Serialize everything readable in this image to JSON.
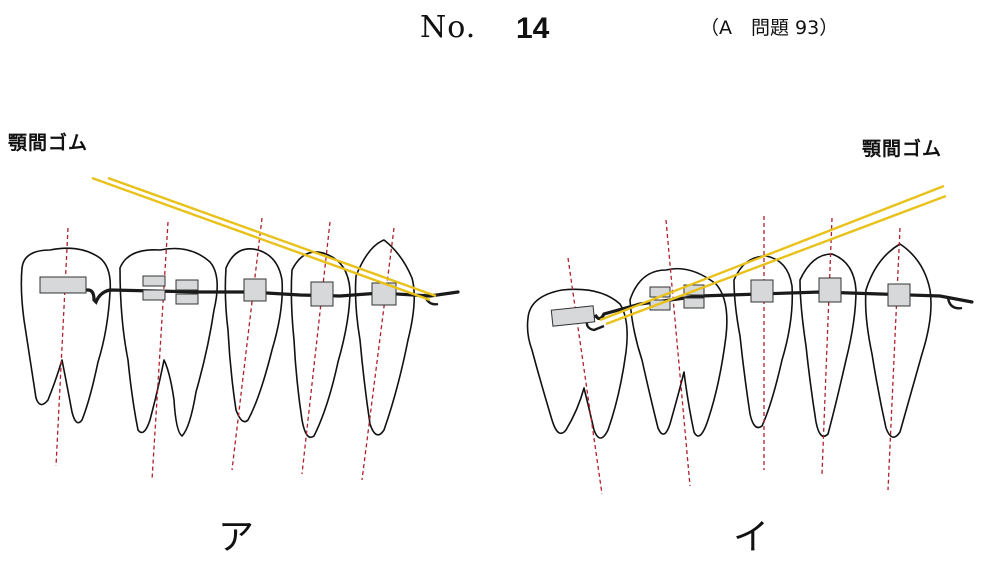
{
  "header": {
    "no": "No.",
    "number": "14",
    "reference": "（A　問題 93）"
  },
  "panels": [
    {
      "id": "A",
      "letter": "ア",
      "elastic_label": "顎間ゴム"
    },
    {
      "id": "B",
      "letter": "イ",
      "elastic_label": "顎間ゴム"
    }
  ],
  "colors": {
    "outline": "#111111",
    "axis": "#b0202a",
    "elastic": "#e8c21a",
    "bracket_fill": "#d6d8da",
    "archwire": "#1a1a1a"
  }
}
